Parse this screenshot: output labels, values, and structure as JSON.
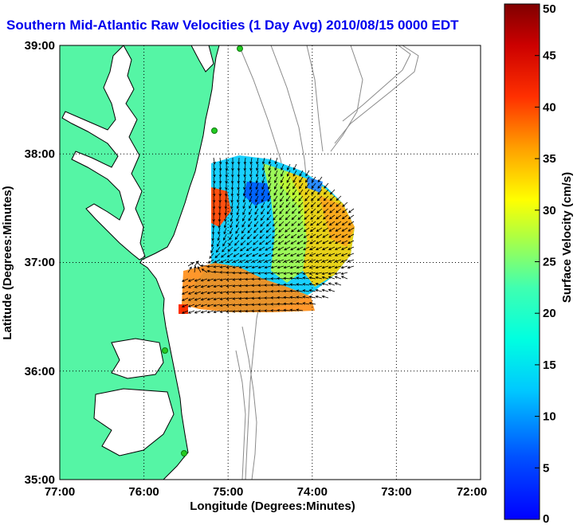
{
  "title": "Southern Mid-Atlantic Raw Velocities (1 Day Avg) 2010/08/15 0000 EDT",
  "map": {
    "xlabel": "Longitude (Degrees:Minutes)",
    "ylabel": "Latitude (Degrees:Minutes)",
    "x_ticks": [
      "77:00",
      "76:00",
      "75:00",
      "74:00",
      "73:00",
      "72:00"
    ],
    "y_ticks": [
      "39:00",
      "38:00",
      "37:00",
      "36:00",
      "35:00"
    ],
    "x_range_deg_west": [
      77,
      72
    ],
    "y_range_deg_north": [
      35,
      39
    ],
    "grid": "dotted",
    "land_color": "#55f5a5",
    "ocean_color": "#ffffff",
    "bathymetry_color": "#8a8a8a",
    "station_color": "#22cc22",
    "arrow_color": "#000000"
  },
  "colorbar": {
    "label": "Surface Velocity (cm/s)",
    "ticks": [
      "0",
      "5",
      "10",
      "15",
      "20",
      "25",
      "30",
      "35",
      "40",
      "45",
      "50"
    ],
    "min": 0,
    "max": 50,
    "colormap": "jet"
  }
}
